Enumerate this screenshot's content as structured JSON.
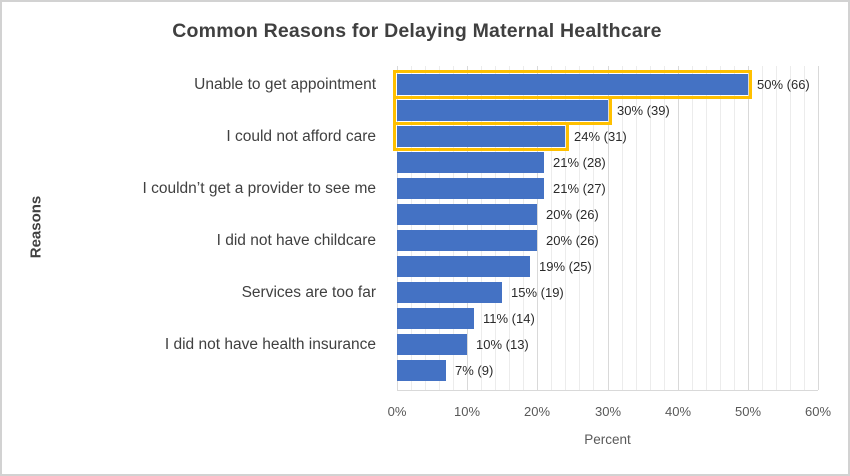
{
  "chart_data": {
    "type": "bar",
    "orientation": "horizontal",
    "title": "Common Reasons for Delaying Maternal Healthcare",
    "xlabel": "Percent",
    "ylabel": "Reasons",
    "xlim": [
      0,
      60
    ],
    "x_ticks": [
      {
        "value": 0,
        "label": "0%"
      },
      {
        "value": 10,
        "label": "10%"
      },
      {
        "value": 20,
        "label": "20%"
      },
      {
        "value": 30,
        "label": "30%"
      },
      {
        "value": 40,
        "label": "40%"
      },
      {
        "value": 50,
        "label": "50%"
      },
      {
        "value": 60,
        "label": "60%"
      }
    ],
    "minor_grid_step": 2,
    "grid": "vertical-minor-and-major",
    "legend": "none",
    "bars": [
      {
        "category": "Unable to get appointment",
        "value": 50,
        "count": 66,
        "data_label": "50% (66)",
        "highlighted": true
      },
      {
        "category": "",
        "value": 30,
        "count": 39,
        "data_label": "30% (39)",
        "highlighted": true
      },
      {
        "category": "I could not afford care",
        "value": 24,
        "count": 31,
        "data_label": "24% (31)",
        "highlighted": true
      },
      {
        "category": "",
        "value": 21,
        "count": 28,
        "data_label": "21% (28)",
        "highlighted": false
      },
      {
        "category": "I couldn’t get a provider to see me",
        "value": 21,
        "count": 27,
        "data_label": "21% (27)",
        "highlighted": false
      },
      {
        "category": "",
        "value": 20,
        "count": 26,
        "data_label": "20% (26)",
        "highlighted": false
      },
      {
        "category": "I did not have childcare",
        "value": 20,
        "count": 26,
        "data_label": "20% (26)",
        "highlighted": false
      },
      {
        "category": "",
        "value": 19,
        "count": 25,
        "data_label": "19% (25)",
        "highlighted": false
      },
      {
        "category": "Services are too far",
        "value": 15,
        "count": 19,
        "data_label": "15% (19)",
        "highlighted": false
      },
      {
        "category": "",
        "value": 11,
        "count": 14,
        "data_label": "11% (14)",
        "highlighted": false
      },
      {
        "category": "I did not have health insurance",
        "value": 10,
        "count": 13,
        "data_label": "10% (13)",
        "highlighted": false
      },
      {
        "category": "",
        "value": 7,
        "count": 9,
        "data_label": "7% (9)",
        "highlighted": false
      }
    ],
    "colors": {
      "bar_fill": "#4472C4",
      "highlight_outline": "#FFC000",
      "grid_minor": "#ececec",
      "grid_major": "#d9d9d9",
      "title_color": "#404040",
      "category_label_color": "#404040",
      "tick_label_color": "#595959",
      "data_label_color": "#2b2b2b",
      "frame_border": "#d2d2d2",
      "background": "#ffffff"
    }
  }
}
